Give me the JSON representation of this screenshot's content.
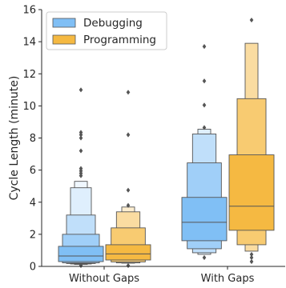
{
  "chart_data": {
    "type": "boxenplot",
    "ylabel": "Cycle Length (minute)",
    "xlabel": "",
    "categories": [
      "Without Gaps",
      "With Gaps"
    ],
    "ylim": [
      0,
      16
    ],
    "yticks": [
      0,
      2,
      4,
      6,
      8,
      10,
      12,
      14,
      16
    ],
    "grid": false,
    "legend": "top-left",
    "series": [
      {
        "name": "Debugging",
        "color": "#80bff5",
        "groups": [
          {
            "category": "Without Gaps",
            "median": 0.65,
            "boxes": [
              [
                0.3,
                1.25
              ],
              [
                0.22,
                2.0
              ],
              [
                0.18,
                3.2
              ],
              [
                0.15,
                4.9
              ],
              [
                0.12,
                5.3
              ]
            ],
            "outliers": [
              11.0,
              8.35,
              8.2,
              8.0,
              7.2,
              6.1,
              5.95,
              5.8,
              5.65,
              0.05
            ]
          },
          {
            "category": "With Gaps",
            "median": 2.75,
            "boxes": [
              [
                1.6,
                4.3
              ],
              [
                1.1,
                6.45
              ],
              [
                0.85,
                8.25
              ],
              [
                0.75,
                8.55
              ]
            ],
            "outliers": [
              13.7,
              11.55,
              10.05,
              8.65,
              0.55
            ]
          }
        ]
      },
      {
        "name": "Programming",
        "color": "#f5b942",
        "groups": [
          {
            "category": "Without Gaps",
            "median": 0.78,
            "boxes": [
              [
                0.4,
                1.35
              ],
              [
                0.28,
                2.4
              ],
              [
                0.22,
                3.4
              ],
              [
                0.2,
                3.7
              ]
            ],
            "outliers": [
              10.85,
              8.2,
              4.75,
              3.8,
              0.05
            ]
          },
          {
            "category": "With Gaps",
            "median": 3.75,
            "boxes": [
              [
                2.25,
                6.95
              ],
              [
                1.35,
                10.45
              ],
              [
                0.95,
                13.9
              ]
            ],
            "outliers": [
              15.35,
              0.75,
              0.55,
              0.3
            ]
          }
        ]
      }
    ]
  }
}
